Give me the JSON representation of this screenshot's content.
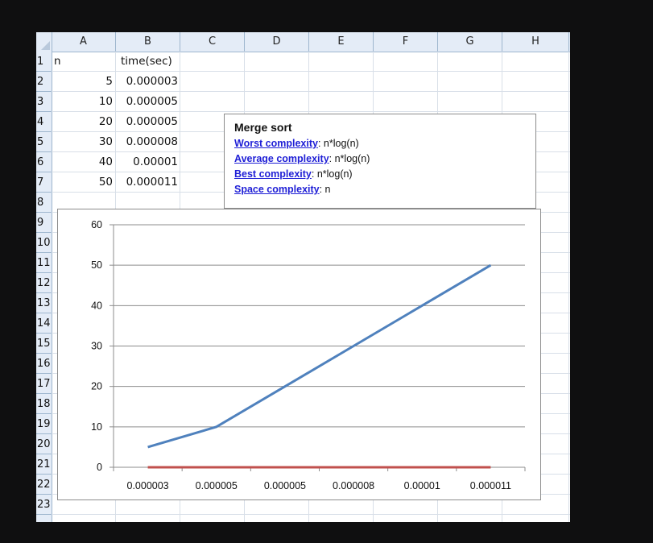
{
  "columns": [
    "A",
    "B",
    "C",
    "D",
    "E",
    "F",
    "G",
    "H"
  ],
  "rows": [
    "1",
    "2",
    "3",
    "4",
    "5",
    "6",
    "7",
    "8",
    "9",
    "10",
    "11",
    "12",
    "13",
    "14",
    "15",
    "16",
    "17",
    "18",
    "19",
    "20",
    "21",
    "22",
    "23"
  ],
  "table": {
    "header": {
      "A": "n",
      "B": "time(sec)"
    },
    "data": [
      {
        "n": "5",
        "time": "0.000003"
      },
      {
        "n": "10",
        "time": "0.000005"
      },
      {
        "n": "20",
        "time": "0.000005"
      },
      {
        "n": "30",
        "time": "0.000008"
      },
      {
        "n": "40",
        "time": "0.00001"
      },
      {
        "n": "50",
        "time": "0.000011"
      }
    ]
  },
  "textbox": {
    "title": "Merge sort",
    "lines": [
      {
        "label": "Worst complexity",
        "value": ": n*log(n)"
      },
      {
        "label": "Average complexity",
        "value": ": n*log(n)"
      },
      {
        "label": "Best complexity",
        "value": ": n*log(n)"
      },
      {
        "label": "Space complexity",
        "value": ": n"
      }
    ]
  },
  "chart_data": {
    "type": "line",
    "categories": [
      "0.000003",
      "0.000005",
      "0.000005",
      "0.000008",
      "0.00001",
      "0.000011"
    ],
    "series": [
      {
        "values": [
          5,
          10,
          20,
          30,
          40,
          50
        ],
        "color": "#4f81bd"
      },
      {
        "values": [
          3e-06,
          5e-06,
          5e-06,
          8e-06,
          1e-05,
          1.1e-05
        ],
        "color": "#c0504d"
      }
    ],
    "yticks": [
      "0",
      "10",
      "20",
      "30",
      "40",
      "50",
      "60"
    ],
    "ylim": [
      0,
      60
    ],
    "grid": true
  }
}
